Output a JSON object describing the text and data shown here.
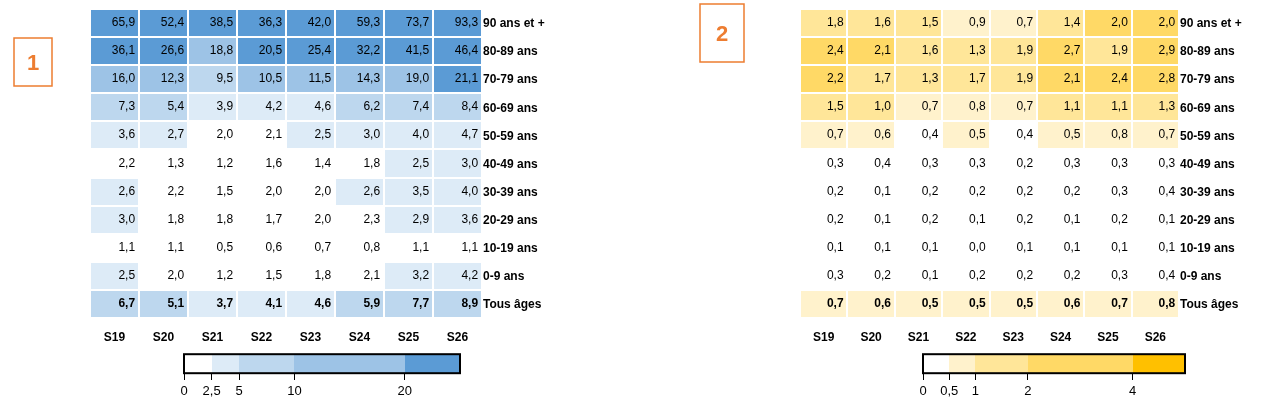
{
  "chart_data": [
    {
      "type": "heatmap",
      "title": "1",
      "categories": [
        "S19",
        "S20",
        "S21",
        "S22",
        "S23",
        "S24",
        "S25",
        "S26"
      ],
      "y_categories": [
        "90 ans et +",
        "80-89 ans",
        "70-79 ans",
        "60-69 ans",
        "50-59 ans",
        "40-49 ans",
        "30-39 ans",
        "20-29 ans",
        "10-19 ans",
        "0-9 ans",
        "Tous âges"
      ],
      "cells": [
        [
          65.9,
          52.4,
          38.5,
          36.3,
          42.0,
          59.3,
          73.7,
          93.3
        ],
        [
          36.1,
          26.6,
          18.8,
          20.5,
          25.4,
          32.2,
          41.5,
          46.4
        ],
        [
          16.0,
          12.3,
          9.5,
          10.5,
          11.5,
          14.3,
          19.0,
          21.1
        ],
        [
          7.3,
          5.4,
          3.9,
          4.2,
          4.6,
          6.2,
          7.4,
          8.4
        ],
        [
          3.6,
          2.7,
          2.0,
          2.1,
          2.5,
          3.0,
          4.0,
          4.7
        ],
        [
          2.2,
          1.3,
          1.2,
          1.6,
          1.4,
          1.8,
          2.5,
          3.0
        ],
        [
          2.6,
          2.2,
          1.5,
          2.0,
          2.0,
          2.6,
          3.5,
          4.0
        ],
        [
          3.0,
          1.8,
          1.8,
          1.7,
          2.0,
          2.3,
          2.9,
          3.6
        ],
        [
          1.1,
          1.1,
          0.5,
          0.6,
          0.7,
          0.8,
          1.1,
          1.1
        ],
        [
          2.5,
          2.0,
          1.2,
          1.5,
          1.8,
          2.1,
          3.2,
          4.2
        ],
        [
          6.7,
          5.1,
          3.7,
          4.1,
          4.6,
          5.9,
          7.7,
          8.9
        ]
      ],
      "cell_labels": [
        [
          "65,9",
          "52,4",
          "38,5",
          "36,3",
          "42,0",
          "59,3",
          "73,7",
          "93,3"
        ],
        [
          "36,1",
          "26,6",
          "18,8",
          "20,5",
          "25,4",
          "32,2",
          "41,5",
          "46,4"
        ],
        [
          "16,0",
          "12,3",
          "9,5",
          "10,5",
          "11,5",
          "14,3",
          "19,0",
          "21,1"
        ],
        [
          "7,3",
          "5,4",
          "3,9",
          "4,2",
          "4,6",
          "6,2",
          "7,4",
          "8,4"
        ],
        [
          "3,6",
          "2,7",
          "2,0",
          "2,1",
          "2,5",
          "3,0",
          "4,0",
          "4,7"
        ],
        [
          "2,2",
          "1,3",
          "1,2",
          "1,6",
          "1,4",
          "1,8",
          "2,5",
          "3,0"
        ],
        [
          "2,6",
          "2,2",
          "1,5",
          "2,0",
          "2,0",
          "2,6",
          "3,5",
          "4,0"
        ],
        [
          "3,0",
          "1,8",
          "1,8",
          "1,7",
          "2,0",
          "2,3",
          "2,9",
          "3,6"
        ],
        [
          "1,1",
          "1,1",
          "0,5",
          "0,6",
          "0,7",
          "0,8",
          "1,1",
          "1,1"
        ],
        [
          "2,5",
          "2,0",
          "1,2",
          "1,5",
          "1,8",
          "2,1",
          "3,2",
          "4,2"
        ],
        [
          "6,7",
          "5,1",
          "3,7",
          "4,1",
          "4,6",
          "5,9",
          "7,7",
          "8,9"
        ]
      ],
      "clim": [
        0,
        25
      ],
      "cticks": [
        0,
        {
          "value": 2.5,
          "label": "2,5"
        },
        5,
        10,
        20
      ],
      "colors": [
        "#ffffff",
        "#ddebf7",
        "#bdd7ee",
        "#9dc3e6",
        "#5b9bd5"
      ]
    },
    {
      "type": "heatmap",
      "title": "2",
      "categories": [
        "S19",
        "S20",
        "S21",
        "S22",
        "S23",
        "S24",
        "S25",
        "S26"
      ],
      "y_categories": [
        "90 ans et +",
        "80-89 ans",
        "70-79 ans",
        "60-69 ans",
        "50-59 ans",
        "40-49 ans",
        "30-39 ans",
        "20-29 ans",
        "10-19 ans",
        "0-9 ans",
        "Tous âges"
      ],
      "cells": [
        [
          1.8,
          1.6,
          1.5,
          0.9,
          0.7,
          1.4,
          2.0,
          2.0
        ],
        [
          2.4,
          2.1,
          1.6,
          1.3,
          1.9,
          2.7,
          1.9,
          2.9
        ],
        [
          2.2,
          1.7,
          1.3,
          1.7,
          1.9,
          2.1,
          2.4,
          2.8
        ],
        [
          1.5,
          1.0,
          0.7,
          0.8,
          0.7,
          1.1,
          1.1,
          1.3
        ],
        [
          0.7,
          0.6,
          0.4,
          0.5,
          0.4,
          0.5,
          0.8,
          0.7
        ],
        [
          0.3,
          0.4,
          0.3,
          0.3,
          0.2,
          0.3,
          0.3,
          0.3
        ],
        [
          0.2,
          0.1,
          0.2,
          0.2,
          0.2,
          0.2,
          0.3,
          0.4
        ],
        [
          0.2,
          0.1,
          0.2,
          0.1,
          0.2,
          0.1,
          0.2,
          0.1
        ],
        [
          0.1,
          0.1,
          0.1,
          0.0,
          0.1,
          0.1,
          0.1,
          0.1
        ],
        [
          0.3,
          0.2,
          0.1,
          0.2,
          0.2,
          0.2,
          0.3,
          0.4
        ],
        [
          0.7,
          0.6,
          0.5,
          0.5,
          0.5,
          0.6,
          0.7,
          0.8
        ]
      ],
      "cell_labels": [
        [
          "1,8",
          "1,6",
          "1,5",
          "0,9",
          "0,7",
          "1,4",
          "2,0",
          "2,0"
        ],
        [
          "2,4",
          "2,1",
          "1,6",
          "1,3",
          "1,9",
          "2,7",
          "1,9",
          "2,9"
        ],
        [
          "2,2",
          "1,7",
          "1,3",
          "1,7",
          "1,9",
          "2,1",
          "2,4",
          "2,8"
        ],
        [
          "1,5",
          "1,0",
          "0,7",
          "0,8",
          "0,7",
          "1,1",
          "1,1",
          "1,3"
        ],
        [
          "0,7",
          "0,6",
          "0,4",
          "0,5",
          "0,4",
          "0,5",
          "0,8",
          "0,7"
        ],
        [
          "0,3",
          "0,4",
          "0,3",
          "0,3",
          "0,2",
          "0,3",
          "0,3",
          "0,3"
        ],
        [
          "0,2",
          "0,1",
          "0,2",
          "0,2",
          "0,2",
          "0,2",
          "0,3",
          "0,4"
        ],
        [
          "0,2",
          "0,1",
          "0,2",
          "0,1",
          "0,2",
          "0,1",
          "0,2",
          "0,1"
        ],
        [
          "0,1",
          "0,1",
          "0,1",
          "0,0",
          "0,1",
          "0,1",
          "0,1",
          "0,1"
        ],
        [
          "0,3",
          "0,2",
          "0,1",
          "0,2",
          "0,2",
          "0,2",
          "0,3",
          "0,4"
        ],
        [
          "0,7",
          "0,6",
          "0,5",
          "0,5",
          "0,5",
          "0,6",
          "0,7",
          "0,8"
        ]
      ],
      "clim": [
        0,
        5
      ],
      "cticks": [
        0,
        {
          "value": 0.5,
          "label": "0,5"
        },
        1,
        2,
        4
      ],
      "colors": [
        "#ffffff",
        "#fff2cc",
        "#ffe699",
        "#ffd966",
        "#ffc000"
      ]
    }
  ]
}
